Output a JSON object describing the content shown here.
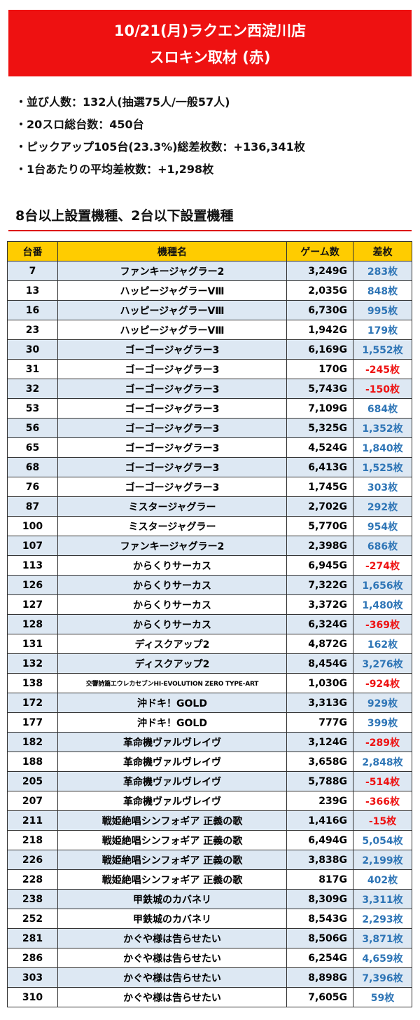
{
  "header": {
    "line1": "10/21(月)ラクエン西淀川店",
    "line2": "スロキン取材 (赤)"
  },
  "summary": [
    "・並び人数：132人(抽選75人/一般57人)",
    "・20スロ総台数：450台",
    "・ピックアップ105台(23.3%)総差枚数：+136,341枚",
    "・1台あたりの平均差枚数：+1,298枚"
  ],
  "section_title": "8台以上設置機種、2台以下設置機種",
  "colors": {
    "banner": "#ee1111",
    "header_bg": "#ffcc00",
    "row_alt": "#dde8f3",
    "positive": "#2e75b6",
    "negative": "#ee1111"
  },
  "table": {
    "headers": [
      "台番",
      "機種名",
      "ゲーム数",
      "差枚"
    ],
    "rows": [
      [
        "7",
        "ファンキージャグラー2",
        "3,249G",
        "283枚"
      ],
      [
        "13",
        "ハッピージャグラーVⅢ",
        "2,035G",
        "848枚"
      ],
      [
        "16",
        "ハッピージャグラーVⅢ",
        "6,730G",
        "995枚"
      ],
      [
        "23",
        "ハッピージャグラーVⅢ",
        "1,942G",
        "179枚"
      ],
      [
        "30",
        "ゴーゴージャグラー3",
        "6,169G",
        "1,552枚"
      ],
      [
        "31",
        "ゴーゴージャグラー3",
        "170G",
        "-245枚"
      ],
      [
        "32",
        "ゴーゴージャグラー3",
        "5,743G",
        "-150枚"
      ],
      [
        "53",
        "ゴーゴージャグラー3",
        "7,109G",
        "684枚"
      ],
      [
        "56",
        "ゴーゴージャグラー3",
        "5,325G",
        "1,352枚"
      ],
      [
        "65",
        "ゴーゴージャグラー3",
        "4,524G",
        "1,840枚"
      ],
      [
        "68",
        "ゴーゴージャグラー3",
        "6,413G",
        "1,525枚"
      ],
      [
        "76",
        "ゴーゴージャグラー3",
        "1,745G",
        "303枚"
      ],
      [
        "87",
        "ミスタージャグラー",
        "2,702G",
        "292枚"
      ],
      [
        "100",
        "ミスタージャグラー",
        "5,770G",
        "954枚"
      ],
      [
        "107",
        "ファンキージャグラー2",
        "2,398G",
        "686枚"
      ],
      [
        "113",
        "からくりサーカス",
        "6,945G",
        "-274枚"
      ],
      [
        "126",
        "からくりサーカス",
        "7,322G",
        "1,656枚"
      ],
      [
        "127",
        "からくりサーカス",
        "3,372G",
        "1,480枚"
      ],
      [
        "128",
        "からくりサーカス",
        "6,324G",
        "-369枚"
      ],
      [
        "131",
        "ディスクアップ2",
        "4,872G",
        "162枚"
      ],
      [
        "132",
        "ディスクアップ2",
        "8,454G",
        "3,276枚"
      ],
      [
        "138",
        "交響詩篇エウレカセブンHI-EVOLUTION ZERO TYPE-ART",
        "1,030G",
        "-924枚"
      ],
      [
        "172",
        "沖ドキ！GOLD",
        "3,313G",
        "929枚"
      ],
      [
        "177",
        "沖ドキ！GOLD",
        "777G",
        "399枚"
      ],
      [
        "182",
        "革命機ヴァルヴレイヴ",
        "3,124G",
        "-289枚"
      ],
      [
        "188",
        "革命機ヴァルヴレイヴ",
        "3,658G",
        "2,848枚"
      ],
      [
        "205",
        "革命機ヴァルヴレイヴ",
        "5,788G",
        "-514枚"
      ],
      [
        "207",
        "革命機ヴァルヴレイヴ",
        "239G",
        "-366枚"
      ],
      [
        "211",
        "戦姫絶唱シンフォギア 正義の歌",
        "1,416G",
        "-15枚"
      ],
      [
        "218",
        "戦姫絶唱シンフォギア 正義の歌",
        "6,494G",
        "5,054枚"
      ],
      [
        "226",
        "戦姫絶唱シンフォギア 正義の歌",
        "3,838G",
        "2,199枚"
      ],
      [
        "228",
        "戦姫絶唱シンフォギア 正義の歌",
        "817G",
        "402枚"
      ],
      [
        "238",
        "甲鉄城のカバネリ",
        "8,309G",
        "3,311枚"
      ],
      [
        "252",
        "甲鉄城のカバネリ",
        "8,543G",
        "2,293枚"
      ],
      [
        "281",
        "かぐや様は告らせたい",
        "8,506G",
        "3,871枚"
      ],
      [
        "286",
        "かぐや様は告らせたい",
        "6,254G",
        "4,659枚"
      ],
      [
        "303",
        "かぐや様は告らせたい",
        "8,898G",
        "7,396枚"
      ],
      [
        "310",
        "かぐや様は告らせたい",
        "7,605G",
        "59枚"
      ]
    ]
  }
}
